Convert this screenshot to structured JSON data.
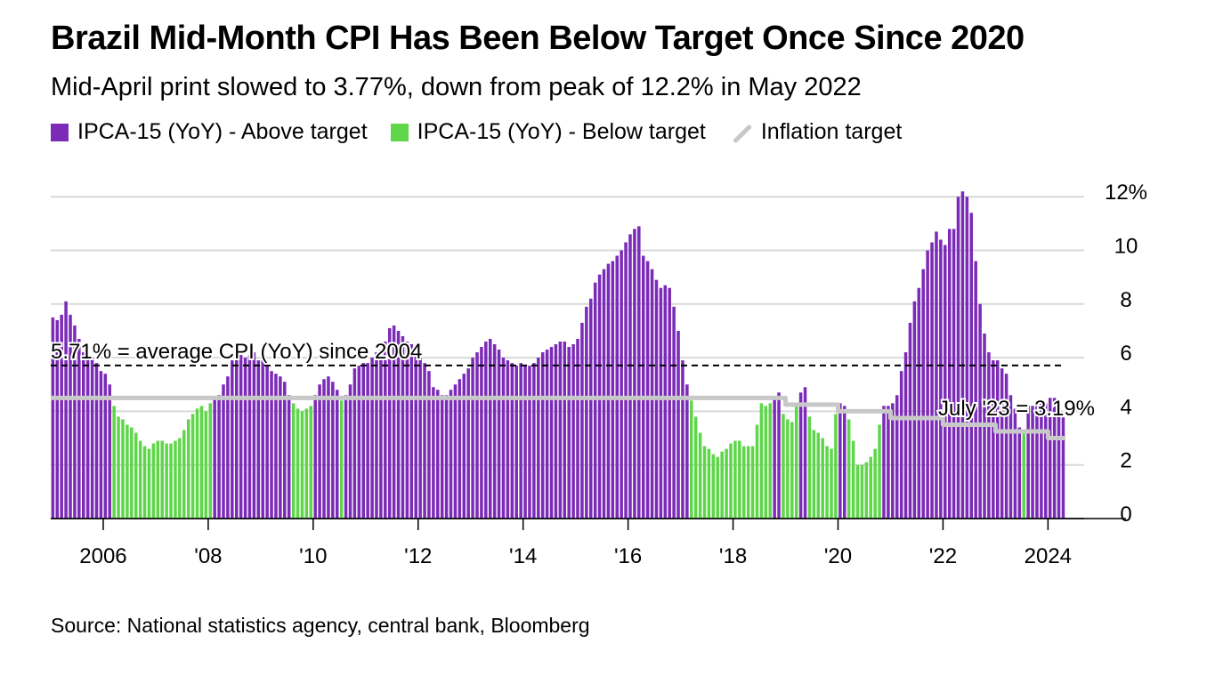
{
  "title": "Brazil Mid-Month CPI Has Been Below Target Once Since 2020",
  "subtitle": "Mid-April print slowed to 3.77%, down from peak of 12.2% in May 2022",
  "legend": [
    {
      "label": "IPCA-15 (YoY) - Above target",
      "color": "#7b2bb7"
    },
    {
      "label": "IPCA-15 (YoY) - Below target",
      "color": "#5fd64a"
    },
    {
      "label": "Inflation target",
      "color": "#c8c8c8"
    }
  ],
  "source": "Source: National statistics agency, central bank, Bloomberg",
  "chart_data": {
    "type": "bar",
    "series_names": [
      "IPCA-15 (YoY) - Above target",
      "IPCA-15 (YoY) - Below target",
      "Inflation target"
    ],
    "x_start": "2005-01",
    "x_end": "2024-04",
    "x_ticks": [
      {
        "label": "2006",
        "value": 2006
      },
      {
        "label": "'08",
        "value": 2008
      },
      {
        "label": "'10",
        "value": 2010
      },
      {
        "label": "'12",
        "value": 2012
      },
      {
        "label": "'14",
        "value": 2014
      },
      {
        "label": "'16",
        "value": 2016
      },
      {
        "label": "'18",
        "value": 2018
      },
      {
        "label": "'20",
        "value": 2020
      },
      {
        "label": "'22",
        "value": 2022
      },
      {
        "label": "2024",
        "value": 2024
      }
    ],
    "y_ticks": [
      {
        "label": "0",
        "value": 0
      },
      {
        "label": "2",
        "value": 2
      },
      {
        "label": "4",
        "value": 4
      },
      {
        "label": "6",
        "value": 6
      },
      {
        "label": "8",
        "value": 8
      },
      {
        "label": "10",
        "value": 10
      },
      {
        "label": "12%",
        "value": 12
      }
    ],
    "ylim": [
      0,
      12.6
    ],
    "grid": true,
    "ipca15_yoy": {
      "2005": [
        7.5,
        7.4,
        7.6,
        8.1,
        7.6,
        7.2,
        6.7,
        6.2,
        6.3,
        6.0,
        5.8,
        5.5
      ],
      "2006": [
        5.4,
        5.0,
        4.2,
        3.8,
        3.7,
        3.5,
        3.4,
        3.2,
        2.9,
        2.7,
        2.6,
        2.8
      ],
      "2007": [
        2.9,
        2.9,
        2.8,
        2.8,
        2.9,
        3.0,
        3.3,
        3.7,
        3.9,
        4.1,
        4.2,
        4.0
      ],
      "2008": [
        4.3,
        4.5,
        4.6,
        5.0,
        5.3,
        5.9,
        6.3,
        6.1,
        6.0,
        6.1,
        6.2,
        5.9
      ],
      "2009": [
        5.9,
        5.7,
        5.5,
        5.4,
        5.3,
        5.1,
        4.6,
        4.3,
        4.1,
        4.0,
        4.1,
        4.2
      ],
      "2010": [
        4.6,
        5.0,
        5.2,
        5.3,
        5.1,
        4.8,
        4.4,
        4.6,
        5.0,
        5.6,
        5.7,
        5.8
      ],
      "2011": [
        5.8,
        6.0,
        6.2,
        6.3,
        6.6,
        7.1,
        7.2,
        7.0,
        6.8,
        6.6,
        6.5,
        6.3
      ],
      "2012": [
        6.0,
        5.8,
        5.5,
        4.9,
        4.8,
        4.6,
        4.6,
        4.8,
        5.0,
        5.2,
        5.4,
        5.6
      ],
      "2013": [
        6.0,
        6.2,
        6.4,
        6.6,
        6.7,
        6.5,
        6.3,
        6.0,
        5.9,
        5.8,
        5.7,
        5.8
      ],
      "2014": [
        5.7,
        5.7,
        5.8,
        6.0,
        6.2,
        6.3,
        6.4,
        6.5,
        6.6,
        6.6,
        6.4,
        6.5
      ],
      "2015": [
        6.7,
        7.3,
        7.9,
        8.2,
        8.8,
        9.1,
        9.3,
        9.5,
        9.6,
        9.8,
        10.0,
        10.3
      ],
      "2016": [
        10.6,
        10.8,
        10.9,
        9.8,
        9.6,
        9.3,
        8.9,
        8.6,
        8.7,
        8.6,
        7.9,
        7.0
      ],
      "2017": [
        5.9,
        5.0,
        4.4,
        3.8,
        3.2,
        2.7,
        2.6,
        2.4,
        2.3,
        2.5,
        2.6,
        2.8
      ],
      "2018": [
        2.9,
        2.9,
        2.7,
        2.7,
        2.7,
        3.5,
        4.3,
        4.2,
        4.3,
        4.5,
        4.7,
        3.9
      ],
      "2019": [
        3.7,
        3.6,
        4.2,
        4.7,
        4.9,
        3.8,
        3.3,
        3.2,
        3.0,
        2.7,
        2.6,
        3.9
      ],
      "2020": [
        4.3,
        4.2,
        3.7,
        2.9,
        2.0,
        2.0,
        2.1,
        2.3,
        2.6,
        3.5,
        4.2,
        4.2
      ],
      "2021": [
        4.3,
        4.6,
        5.5,
        6.2,
        7.3,
        8.1,
        8.6,
        9.3,
        10.0,
        10.3,
        10.7,
        10.4
      ],
      "2022": [
        10.2,
        10.8,
        10.8,
        12.0,
        12.2,
        12.0,
        11.4,
        9.6,
        8.0,
        6.9,
        6.2,
        5.9
      ],
      "2023": [
        5.9,
        5.6,
        5.4,
        4.6,
        4.1,
        3.4,
        3.19,
        4.2,
        4.2,
        4.3,
        4.3,
        4.3
      ],
      "2024": [
        4.5,
        4.5,
        4.1,
        3.77
      ]
    },
    "inflation_target": [
      {
        "from": "2005-01",
        "to": "2018-12",
        "value": 4.5
      },
      {
        "from": "2019-01",
        "to": "2019-12",
        "value": 4.25
      },
      {
        "from": "2020-01",
        "to": "2020-12",
        "value": 4.0
      },
      {
        "from": "2021-01",
        "to": "2021-12",
        "value": 3.75
      },
      {
        "from": "2022-01",
        "to": "2022-12",
        "value": 3.5
      },
      {
        "from": "2023-01",
        "to": "2023-12",
        "value": 3.25
      },
      {
        "from": "2024-01",
        "to": "2024-04",
        "value": 3.0
      }
    ],
    "average_line": {
      "value": 5.71,
      "label": "5.71% = average CPI (YoY) since 2004"
    },
    "annotations": [
      {
        "label": "July '23 = 3.19%",
        "x": "2023-07",
        "y": 3.19
      }
    ]
  }
}
